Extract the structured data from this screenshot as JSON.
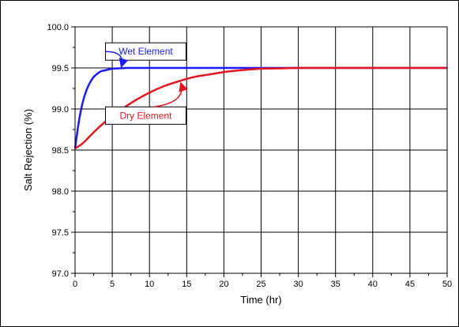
{
  "chart_data": {
    "type": "line",
    "xlabel": "Time (hr)",
    "ylabel": "Salt Rejection (%)",
    "xlim": [
      0,
      50
    ],
    "ylim": [
      97.0,
      100.0
    ],
    "x_ticks": [
      0,
      5,
      10,
      15,
      20,
      25,
      30,
      35,
      40,
      45,
      50
    ],
    "y_ticks": [
      "97.0",
      "97.5",
      "98.0",
      "98.5",
      "99.0",
      "99.5",
      "100.0"
    ],
    "grid": true,
    "series": [
      {
        "name": "Wet Element",
        "color": "#1a1aff",
        "x": [
          0,
          0.5,
          1,
          1.5,
          2,
          2.5,
          3,
          3.5,
          4,
          5,
          6,
          7,
          8,
          10,
          12,
          15,
          20,
          25,
          30,
          35,
          40,
          45,
          50
        ],
        "y": [
          98.52,
          98.84,
          99.07,
          99.22,
          99.32,
          99.39,
          99.43,
          99.46,
          99.47,
          99.49,
          99.495,
          99.5,
          99.5,
          99.5,
          99.5,
          99.5,
          99.5,
          99.5,
          99.5,
          99.5,
          99.5,
          99.5,
          99.5
        ]
      },
      {
        "name": "Dry Element",
        "color": "#e8141e",
        "x": [
          0,
          1,
          2,
          3,
          4,
          5,
          6,
          8,
          10,
          12,
          14,
          16,
          18,
          20,
          22,
          25,
          28,
          30,
          35,
          40,
          45,
          50
        ],
        "y": [
          98.52,
          98.58,
          98.67,
          98.76,
          98.84,
          98.91,
          98.98,
          99.1,
          99.2,
          99.28,
          99.34,
          99.39,
          99.42,
          99.45,
          99.47,
          99.49,
          99.495,
          99.5,
          99.5,
          99.5,
          99.5,
          99.5
        ]
      }
    ],
    "annotations": [
      {
        "text": "Wet Element",
        "series": "Wet Element",
        "box_color": "#1a1aff",
        "box_at": [
          9.5,
          99.7
        ],
        "arrow_to": [
          6.2,
          99.51
        ]
      },
      {
        "text": "Dry Element",
        "series": "Dry Element",
        "box_color": "#e8141e",
        "box_at": [
          9.5,
          98.92
        ],
        "arrow_to": [
          14.2,
          99.32
        ]
      }
    ]
  }
}
